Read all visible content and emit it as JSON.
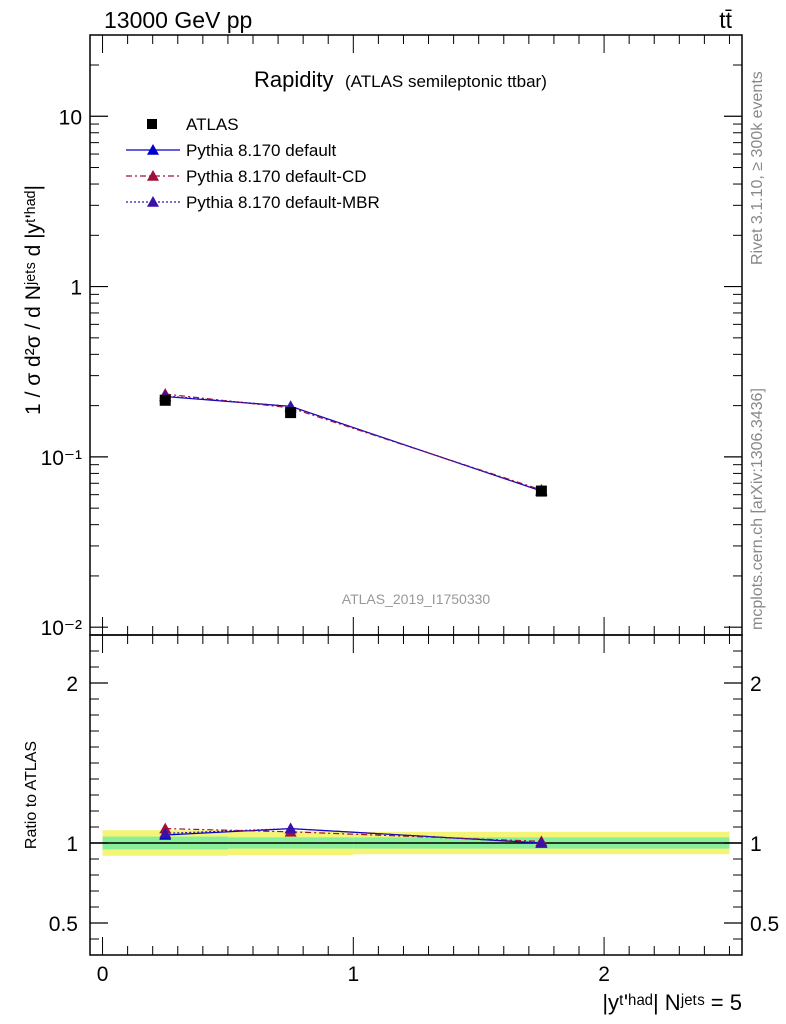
{
  "header": {
    "energy_label": "13000 GeV pp",
    "process_label": "tt̄"
  },
  "side_labels": {
    "rivet_label": "Rivet 3.1.10, ≥ 300k events",
    "mcplots_label": "mcplots.cern.ch [arXiv:1306.3436]"
  },
  "chart_data": {
    "type": "scatter",
    "title_main": "Rapidity",
    "title_sub": "(ATLAS semileptonic ttbar)",
    "analysis_id": "ATLAS_2019_I1750330",
    "ylabel_upper": "1 / σ d²σ / d Nʲᵉᵗˢ d |yᵗ'ʰᵃᵈ|",
    "ylabel_lower": "Ratio to ATLAS",
    "xlabel": "|yᵗ'ʰᵃᵈ| Nʲᵉᵗˢ = 5",
    "x_range": [
      -0.05,
      2.55
    ],
    "upper_y_range_log": [
      0.009,
      30
    ],
    "upper_y_ticks": [
      {
        "value": 0.01,
        "label": "10⁻²"
      },
      {
        "value": 0.1,
        "label": "10⁻¹"
      },
      {
        "value": 1,
        "label": "1"
      },
      {
        "value": 10,
        "label": "10"
      }
    ],
    "lower_y_range": [
      0.3,
      2.3
    ],
    "lower_y_ticks": [
      {
        "value": 0.5,
        "label": "0.5"
      },
      {
        "value": 1,
        "label": "1"
      },
      {
        "value": 2,
        "label": "2"
      }
    ],
    "x_ticks": [
      {
        "value": 0,
        "label": "0"
      },
      {
        "value": 1,
        "label": "1"
      },
      {
        "value": 2,
        "label": "2"
      }
    ],
    "bins": [
      [
        0,
        0.5
      ],
      [
        0.5,
        1.0
      ],
      [
        1.0,
        2.5
      ]
    ],
    "x": [
      0.25,
      0.75,
      1.75
    ],
    "data": {
      "name": "ATLAS",
      "values": [
        0.215,
        0.182,
        0.063
      ],
      "band_inner": [
        0.04,
        0.035,
        0.035
      ],
      "band_outer": [
        0.08,
        0.075,
        0.07
      ]
    },
    "series": [
      {
        "name": "Pythia 8.170 default",
        "color": "#0000cc",
        "dash": "",
        "values": [
          0.226,
          0.198,
          0.063
        ],
        "ratio": [
          1.05,
          1.09,
          1.0
        ]
      },
      {
        "name": "Pythia 8.170 default-CD",
        "color": "#a0103a",
        "dash": "6,3,2,3",
        "values": [
          0.234,
          0.194,
          0.064
        ],
        "ratio": [
          1.09,
          1.07,
          1.01
        ]
      },
      {
        "name": "Pythia 8.170 default-MBR",
        "color": "#3a10a8",
        "dash": "2,2",
        "values": [
          0.228,
          0.198,
          0.063
        ],
        "ratio": [
          1.06,
          1.09,
          1.0
        ]
      }
    ],
    "band_colors": {
      "inner": "#88ee99",
      "outer": "#f4f477"
    }
  }
}
